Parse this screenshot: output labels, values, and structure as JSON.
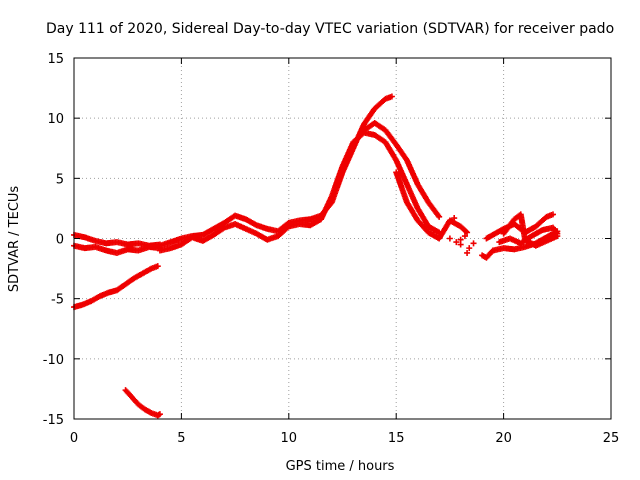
{
  "chart_data": {
    "type": "scatter",
    "title": "Day 111 of 2020, Sidereal Day-to-day VTEC variation (SDTVAR) for receiver pado",
    "xlabel": "GPS time / hours",
    "ylabel": "SDTVAR / TECUs",
    "xlim": [
      0,
      25
    ],
    "ylim": [
      -15,
      15
    ],
    "xticks": [
      0,
      5,
      10,
      15,
      20,
      25
    ],
    "yticks": [
      -15,
      -10,
      -5,
      0,
      5,
      10,
      15
    ],
    "grid": true,
    "marker": "+",
    "color": "#ee0000",
    "series": [
      {
        "name": "trace-a",
        "points": [
          [
            0.0,
            0.3
          ],
          [
            0.5,
            0.1
          ],
          [
            1.0,
            -0.2
          ],
          [
            1.5,
            -0.4
          ],
          [
            2.0,
            -0.3
          ],
          [
            2.5,
            -0.5
          ],
          [
            3.0,
            -0.4
          ],
          [
            3.5,
            -0.6
          ],
          [
            4.0,
            -0.5
          ]
        ]
      },
      {
        "name": "trace-b",
        "points": [
          [
            0.0,
            -0.6
          ],
          [
            0.5,
            -0.8
          ],
          [
            1.0,
            -0.7
          ],
          [
            1.5,
            -1.0
          ],
          [
            2.0,
            -1.2
          ],
          [
            2.5,
            -0.9
          ],
          [
            3.0,
            -1.0
          ],
          [
            3.5,
            -0.7
          ],
          [
            4.0,
            -0.8
          ]
        ]
      },
      {
        "name": "trace-c",
        "points": [
          [
            0.0,
            -5.7
          ],
          [
            0.4,
            -5.5
          ],
          [
            0.8,
            -5.2
          ],
          [
            1.2,
            -4.8
          ],
          [
            1.6,
            -4.5
          ],
          [
            2.0,
            -4.3
          ],
          [
            2.4,
            -3.8
          ],
          [
            2.8,
            -3.3
          ],
          [
            3.2,
            -2.9
          ],
          [
            3.6,
            -2.5
          ],
          [
            3.9,
            -2.3
          ]
        ]
      },
      {
        "name": "trace-d",
        "points": [
          [
            2.4,
            -12.6
          ],
          [
            2.7,
            -13.2
          ],
          [
            3.0,
            -13.8
          ],
          [
            3.3,
            -14.2
          ],
          [
            3.6,
            -14.5
          ],
          [
            3.9,
            -14.7
          ],
          [
            4.0,
            -14.6
          ]
        ]
      },
      {
        "name": "trace-e",
        "points": [
          [
            4.0,
            -0.6
          ],
          [
            4.5,
            -0.3
          ],
          [
            5.0,
            0.0
          ],
          [
            5.5,
            0.2
          ],
          [
            6.0,
            0.3
          ],
          [
            6.5,
            0.8
          ],
          [
            7.0,
            1.3
          ],
          [
            7.5,
            1.9
          ],
          [
            8.0,
            1.6
          ],
          [
            8.5,
            1.1
          ],
          [
            9.0,
            0.8
          ],
          [
            9.5,
            0.6
          ],
          [
            10.0,
            1.3
          ],
          [
            10.5,
            1.5
          ],
          [
            11.0,
            1.6
          ],
          [
            11.5,
            1.9
          ],
          [
            12.0,
            3.0
          ],
          [
            12.5,
            5.5
          ],
          [
            13.0,
            7.5
          ],
          [
            13.5,
            9.5
          ],
          [
            14.0,
            10.8
          ],
          [
            14.5,
            11.6
          ],
          [
            14.8,
            11.8
          ]
        ]
      },
      {
        "name": "trace-f",
        "points": [
          [
            4.0,
            -1.0
          ],
          [
            4.5,
            -0.8
          ],
          [
            5.0,
            -0.5
          ],
          [
            5.5,
            0.1
          ],
          [
            6.0,
            -0.2
          ],
          [
            6.5,
            0.3
          ],
          [
            7.0,
            0.9
          ],
          [
            7.5,
            1.2
          ],
          [
            8.0,
            0.8
          ],
          [
            8.5,
            0.4
          ],
          [
            9.0,
            -0.1
          ],
          [
            9.5,
            0.2
          ],
          [
            10.0,
            1.0
          ],
          [
            10.5,
            1.2
          ],
          [
            11.0,
            1.1
          ],
          [
            11.5,
            1.6
          ],
          [
            12.0,
            3.5
          ],
          [
            12.5,
            6.0
          ],
          [
            13.0,
            8.0
          ],
          [
            13.5,
            8.8
          ],
          [
            14.0,
            8.6
          ],
          [
            14.5,
            8.0
          ],
          [
            15.0,
            6.5
          ],
          [
            15.5,
            4.5
          ],
          [
            16.0,
            2.5
          ],
          [
            16.5,
            1.0
          ],
          [
            17.0,
            0.5
          ]
        ]
      },
      {
        "name": "trace-g",
        "points": [
          [
            13.5,
            9.0
          ],
          [
            14.0,
            9.6
          ],
          [
            14.5,
            9.0
          ],
          [
            15.0,
            7.8
          ],
          [
            15.5,
            6.5
          ],
          [
            16.0,
            4.5
          ],
          [
            16.5,
            3.0
          ],
          [
            17.0,
            1.8
          ]
        ]
      },
      {
        "name": "trace-h",
        "points": [
          [
            15.0,
            5.5
          ],
          [
            15.5,
            3.0
          ],
          [
            16.0,
            1.5
          ],
          [
            16.5,
            0.5
          ],
          [
            17.0,
            0.0
          ],
          [
            17.5,
            1.5
          ],
          [
            18.0,
            1.0
          ],
          [
            18.3,
            0.5
          ]
        ]
      },
      {
        "name": "scatter-i",
        "points": [
          [
            17.5,
            0.0
          ],
          [
            17.8,
            -0.3
          ],
          [
            18.0,
            -0.5
          ],
          [
            18.2,
            0.2
          ],
          [
            18.4,
            -0.8
          ],
          [
            18.6,
            -0.4
          ],
          [
            18.3,
            -1.2
          ],
          [
            17.7,
            1.7
          ],
          [
            18.0,
            -0.1
          ]
        ]
      },
      {
        "name": "trace-j",
        "points": [
          [
            19.0,
            -1.4
          ],
          [
            19.2,
            -1.6
          ],
          [
            19.5,
            -1.0
          ],
          [
            20.0,
            -0.8
          ],
          [
            20.5,
            -0.9
          ],
          [
            21.0,
            -0.7
          ],
          [
            21.5,
            -0.4
          ],
          [
            22.0,
            0.1
          ],
          [
            22.5,
            0.6
          ]
        ]
      },
      {
        "name": "trace-k",
        "points": [
          [
            19.2,
            0.0
          ],
          [
            19.5,
            0.3
          ],
          [
            20.0,
            0.8
          ],
          [
            20.5,
            1.2
          ],
          [
            21.0,
            0.5
          ],
          [
            21.5,
            1.0
          ],
          [
            22.0,
            1.8
          ],
          [
            22.3,
            2.0
          ]
        ]
      },
      {
        "name": "trace-l",
        "points": [
          [
            19.8,
            -0.3
          ],
          [
            20.3,
            0.0
          ],
          [
            20.8,
            -0.4
          ],
          [
            21.3,
            0.2
          ],
          [
            21.8,
            0.7
          ],
          [
            22.3,
            0.9
          ],
          [
            22.5,
            0.4
          ]
        ]
      },
      {
        "name": "trace-m",
        "points": [
          [
            20.0,
            0.4
          ],
          [
            20.5,
            1.6
          ],
          [
            20.8,
            2.0
          ],
          [
            21.0,
            -0.1
          ],
          [
            21.5,
            -0.6
          ],
          [
            22.0,
            -0.2
          ],
          [
            22.5,
            0.2
          ]
        ]
      }
    ]
  }
}
